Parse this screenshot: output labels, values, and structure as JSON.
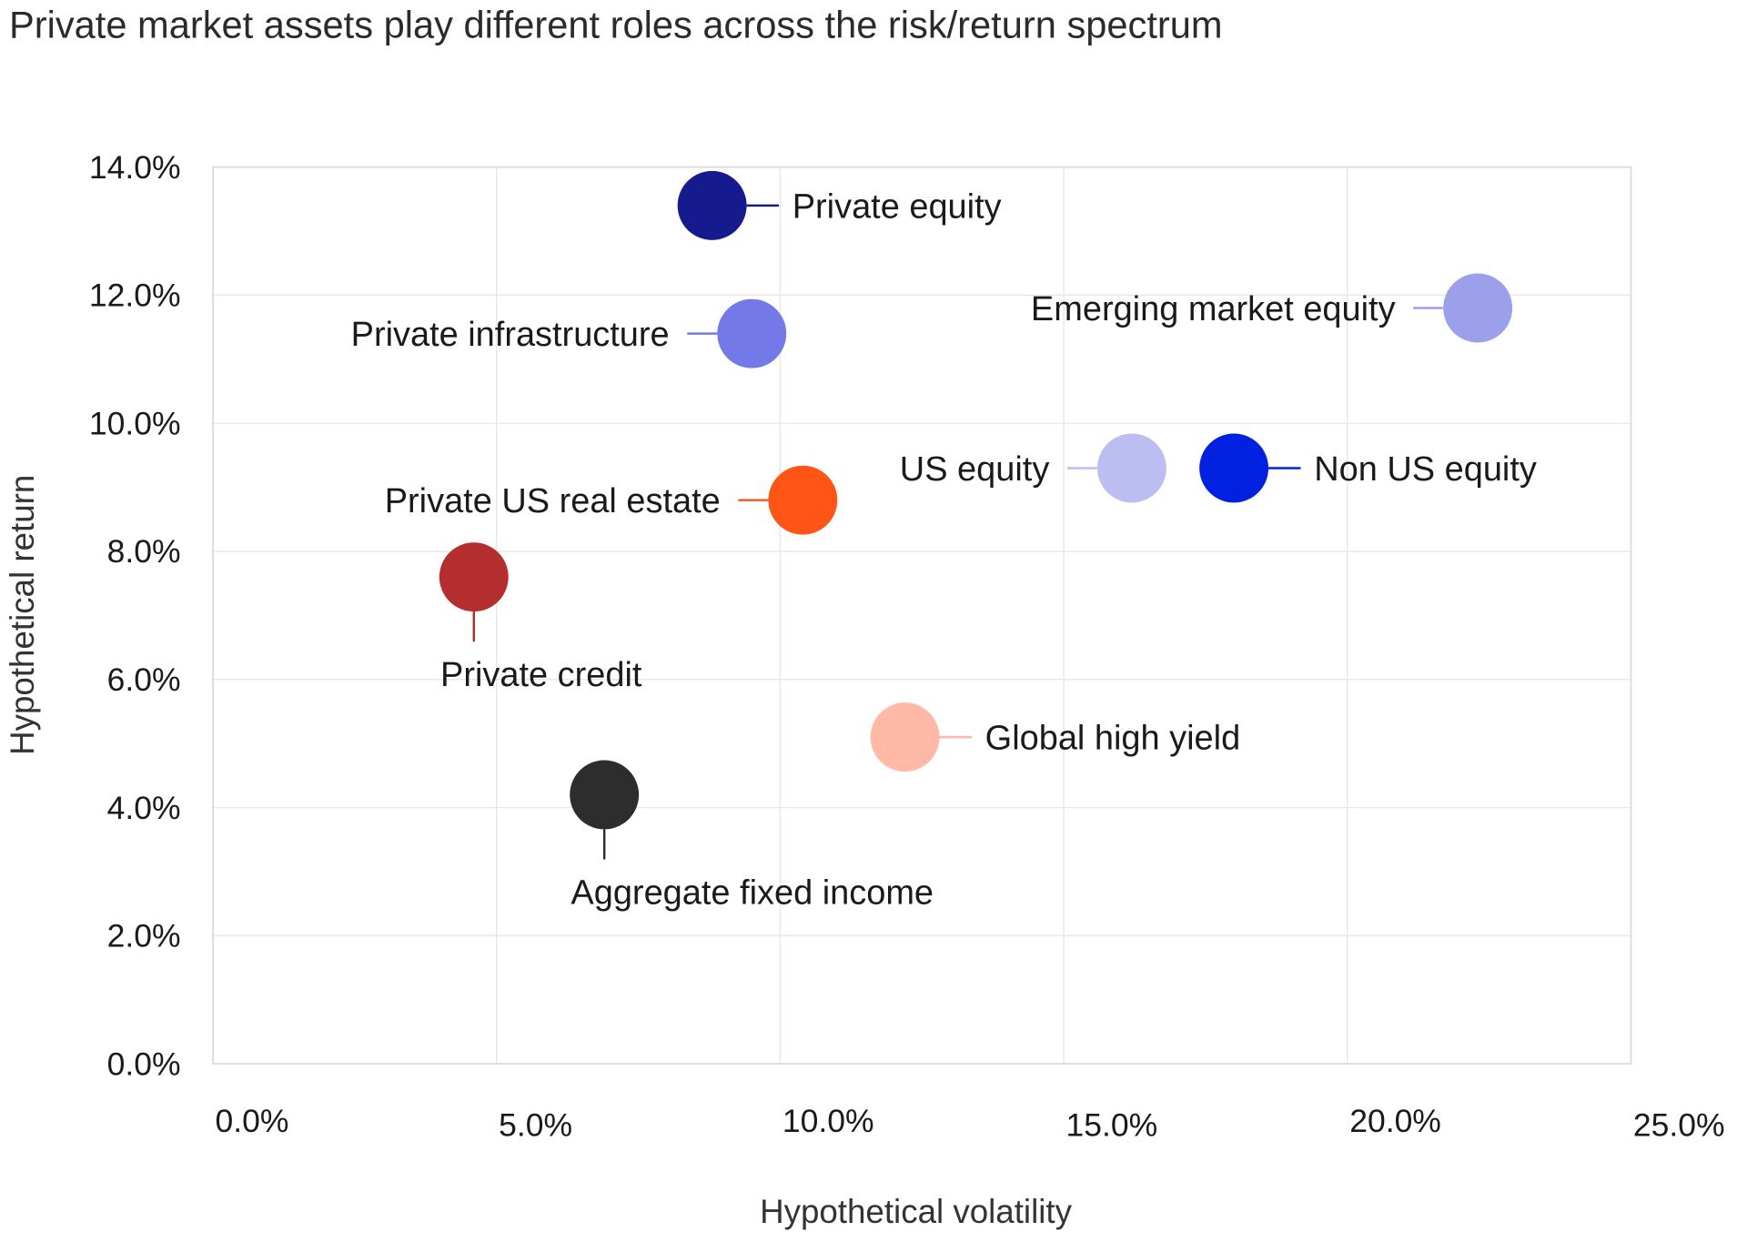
{
  "chart_data": {
    "type": "scatter",
    "title": "Private market assets play different roles across the risk/return spectrum",
    "xlabel": "Hypothetical volatility",
    "ylabel": "Hypothetical return",
    "xlim": [
      0,
      25
    ],
    "ylim": [
      0,
      14
    ],
    "x_ticks": [
      "0.0%",
      "5.0%",
      "10.0%",
      "15.0%",
      "20.0%",
      "25.0%"
    ],
    "y_ticks": [
      "0.0%",
      "2.0%",
      "4.0%",
      "6.0%",
      "8.0%",
      "10.0%",
      "12.0%",
      "14.0%"
    ],
    "grid": true,
    "legend": "none",
    "points": [
      {
        "name": "Private equity",
        "x": 8.8,
        "y": 13.4,
        "color": "#151a8f",
        "label_position": "right"
      },
      {
        "name": "Private infrastructure",
        "x": 9.5,
        "y": 11.4,
        "color": "#7479e8",
        "label_position": "left"
      },
      {
        "name": "Emerging market equity",
        "x": 22.3,
        "y": 11.8,
        "color": "#9ca0ea",
        "label_position": "left"
      },
      {
        "name": "US equity",
        "x": 16.2,
        "y": 9.3,
        "color": "#bcbdf0",
        "label_position": "left"
      },
      {
        "name": "Non US equity",
        "x": 18.0,
        "y": 9.3,
        "color": "#0022e0",
        "label_position": "right"
      },
      {
        "name": "Private US real estate",
        "x": 10.4,
        "y": 8.8,
        "color": "#ff5516",
        "label_position": "left"
      },
      {
        "name": "Private credit",
        "x": 4.6,
        "y": 7.6,
        "color": "#b52e2e",
        "label_position": "below"
      },
      {
        "name": "Global high yield",
        "x": 12.2,
        "y": 5.1,
        "color": "#ffb9a6",
        "label_position": "right"
      },
      {
        "name": "Aggregate fixed income",
        "x": 6.9,
        "y": 4.2,
        "color": "#2d2d2d",
        "label_position": "below"
      }
    ]
  }
}
